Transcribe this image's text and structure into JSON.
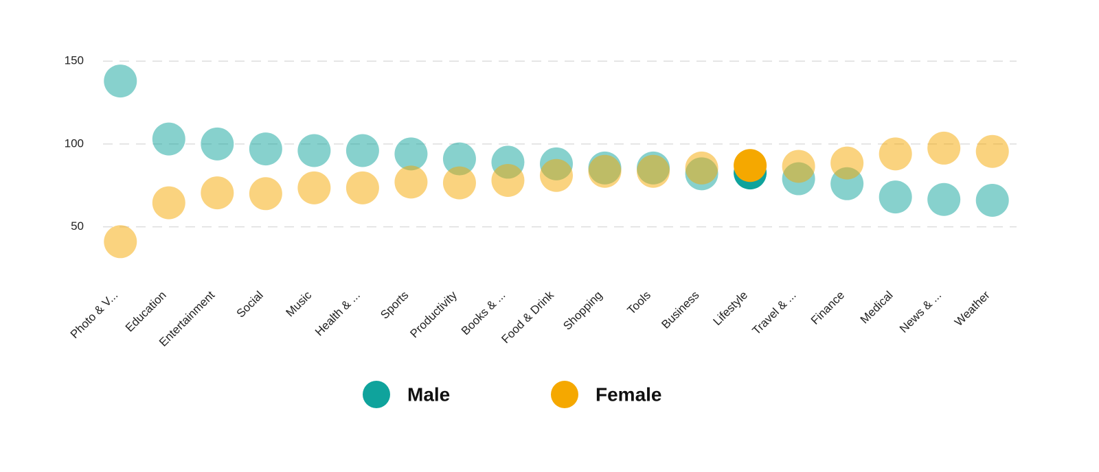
{
  "chart_data": {
    "type": "dot",
    "categories": [
      "Photo & V...",
      "Education",
      "Entertainment",
      "Social",
      "Music",
      "Health & ...",
      "Sports",
      "Productivity",
      "Books & ...",
      "Food & Drink",
      "Shopping",
      "Tools",
      "Business",
      "Lifestyle",
      "Travel & ...",
      "Finance",
      "Medical",
      "News & ...",
      "Weather"
    ],
    "series": [
      {
        "name": "Male",
        "color": "#0fa39c",
        "values": [
          138,
          103,
          100,
          97,
          96,
          96,
          94,
          91,
          89,
          88,
          85.5,
          85.5,
          82,
          82.5,
          79,
          76,
          68,
          66.5,
          66
        ]
      },
      {
        "name": "Female",
        "color": "#f5a800",
        "values": [
          41,
          64.5,
          70.5,
          70,
          73.5,
          73.5,
          77,
          76.5,
          78,
          81,
          83.5,
          83.5,
          85.5,
          87,
          86.5,
          88.5,
          94,
          97.5,
          95.5
        ]
      }
    ],
    "ylim": [
      20,
      160
    ],
    "yticks": [
      50,
      100,
      150
    ],
    "grid": true,
    "opacity": 0.5,
    "highlight_index": 13
  }
}
